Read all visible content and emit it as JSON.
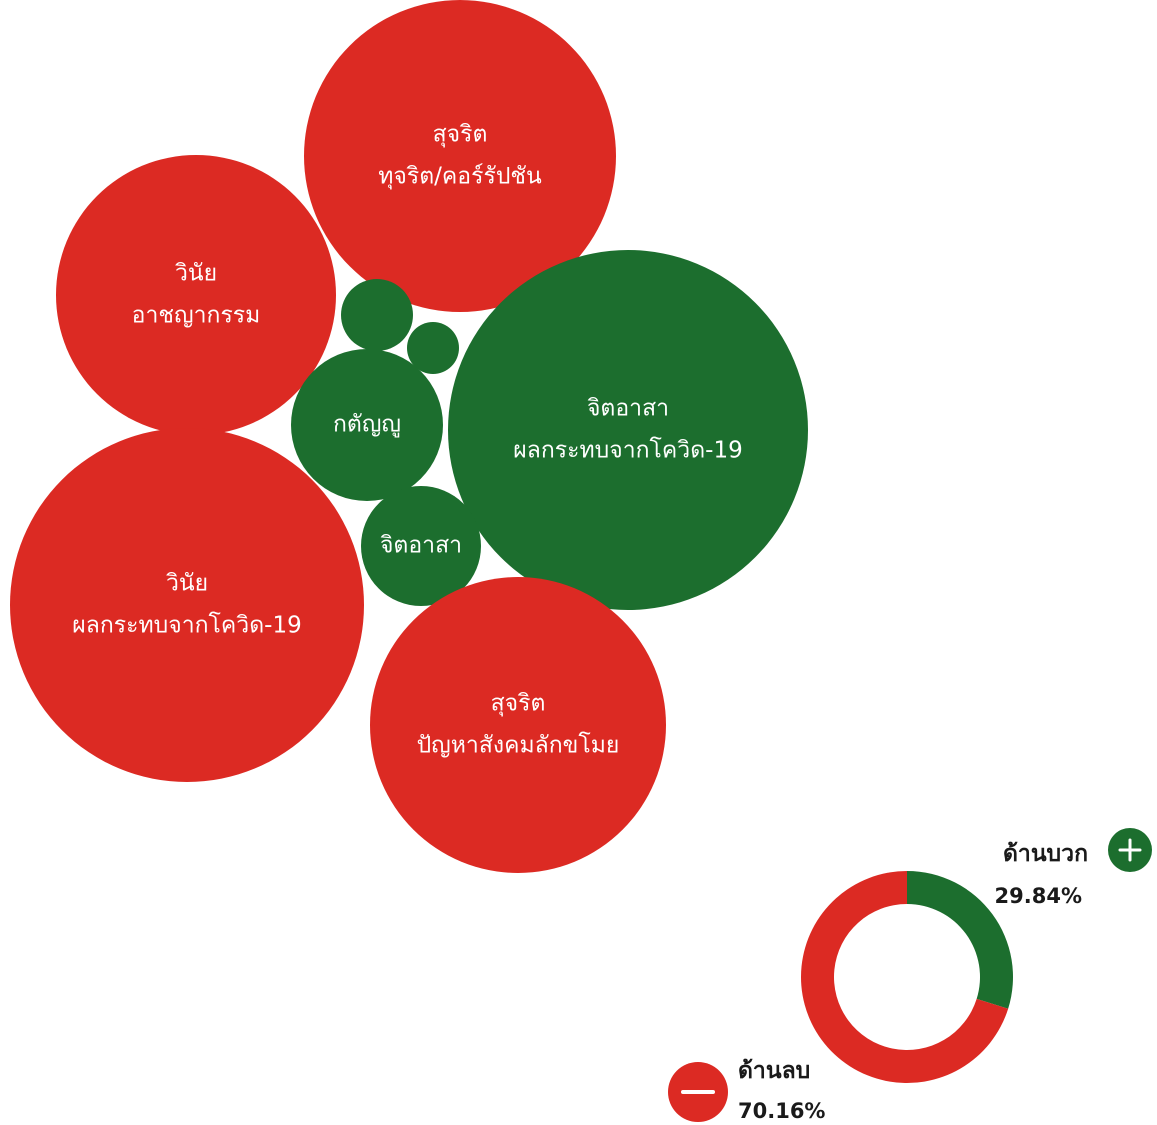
{
  "colors": {
    "negative": "#dc2a23",
    "positive": "#1c6e2e",
    "background": "#ffffff",
    "text_on_bubble": "#ffffff",
    "legend_text": "#1a1a1a"
  },
  "chart_data": [
    {
      "type": "bubble",
      "bubbles": [
        {
          "id": "b1",
          "polarity": "negative",
          "lines": [
            "สุจริต",
            "ทุจริต/คอร์รัปชัน"
          ]
        },
        {
          "id": "b2",
          "polarity": "negative",
          "lines": [
            "วินัย",
            "อาชญากรรม"
          ]
        },
        {
          "id": "b3",
          "polarity": "positive",
          "lines": []
        },
        {
          "id": "b4",
          "polarity": "positive",
          "lines": []
        },
        {
          "id": "b5",
          "polarity": "positive",
          "lines": [
            "กตัญญู"
          ]
        },
        {
          "id": "b6",
          "polarity": "positive",
          "lines": [
            "จิตอาสา",
            "ผลกระทบจากโควิด-19"
          ]
        },
        {
          "id": "b7",
          "polarity": "positive",
          "lines": [
            "จิตอาสา"
          ]
        },
        {
          "id": "b8",
          "polarity": "negative",
          "lines": [
            "วินัย",
            "ผลกระทบจากโควิด-19"
          ]
        },
        {
          "id": "b9",
          "polarity": "negative",
          "lines": [
            "สุจริต",
            "ปัญหาสังคมลักขโมย"
          ]
        }
      ]
    },
    {
      "type": "pie",
      "donut": true,
      "slices": [
        {
          "key": "positive",
          "label": "ด้านบวก",
          "value": 29.84,
          "value_text": "29.84%"
        },
        {
          "key": "negative",
          "label": "ด้านลบ",
          "value": 70.16,
          "value_text": "70.16%"
        }
      ]
    }
  ],
  "legend": {
    "positive": {
      "label": "ด้านบวก",
      "value_text": "29.84%",
      "symbol": "plus-icon"
    },
    "negative": {
      "label": "ด้านลบ",
      "value_text": "70.16%",
      "symbol": "minus-icon"
    }
  }
}
